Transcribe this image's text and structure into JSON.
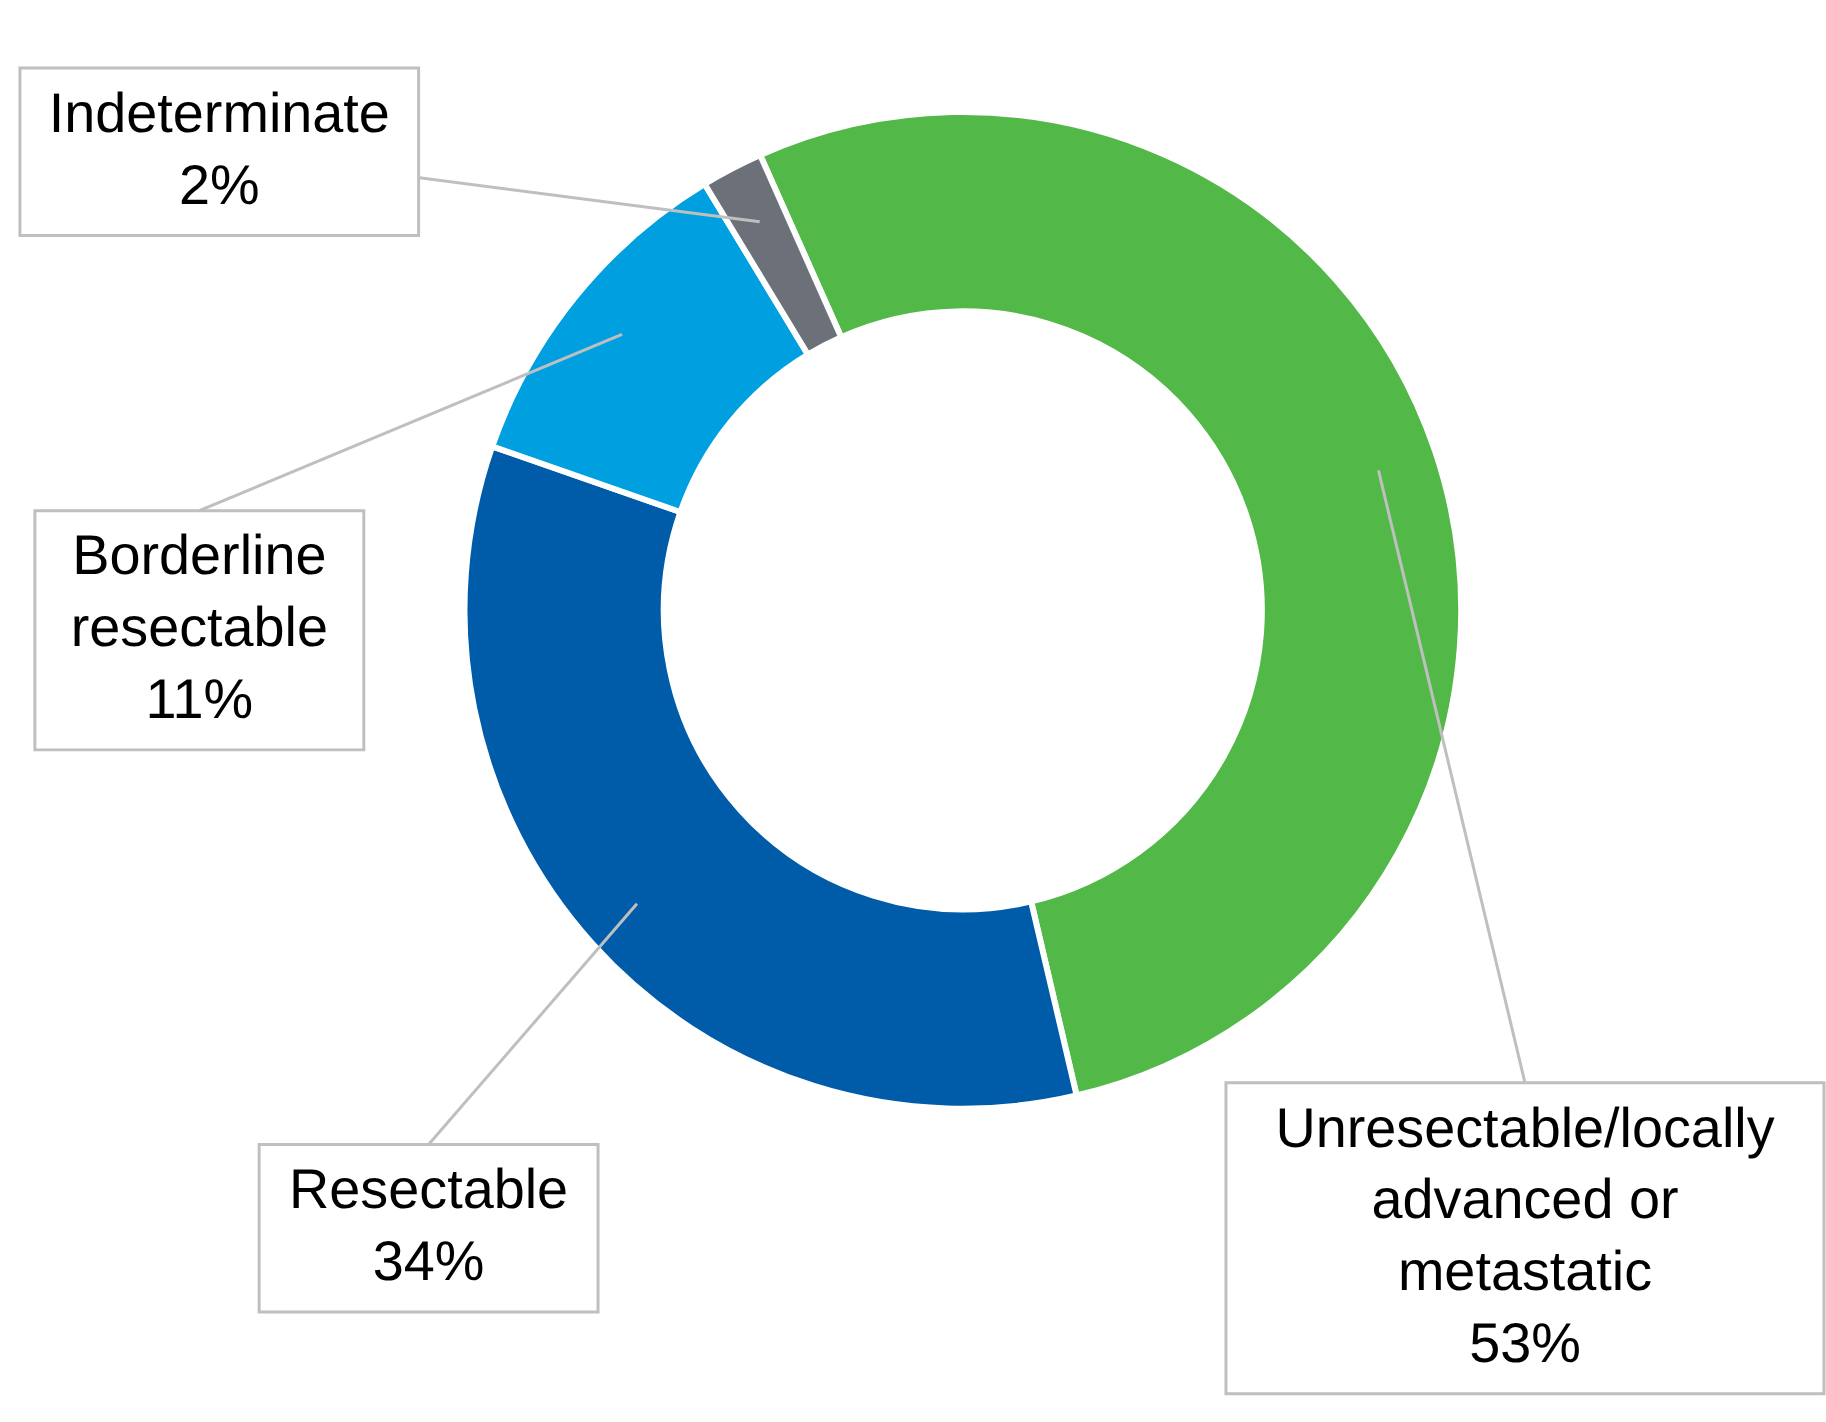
{
  "chart_data": {
    "type": "donut",
    "categories": [
      "Unresectable/locally advanced or metastatic",
      "Resectable",
      "Borderline resectable",
      "Indeterminate"
    ],
    "values": [
      53,
      34,
      11,
      2
    ],
    "colors": [
      "#52b848",
      "#005ca8",
      "#00a0e0",
      "#6b7079"
    ],
    "value_labels": [
      "53%",
      "34%",
      "11%",
      "2%"
    ],
    "legend": false
  }
}
